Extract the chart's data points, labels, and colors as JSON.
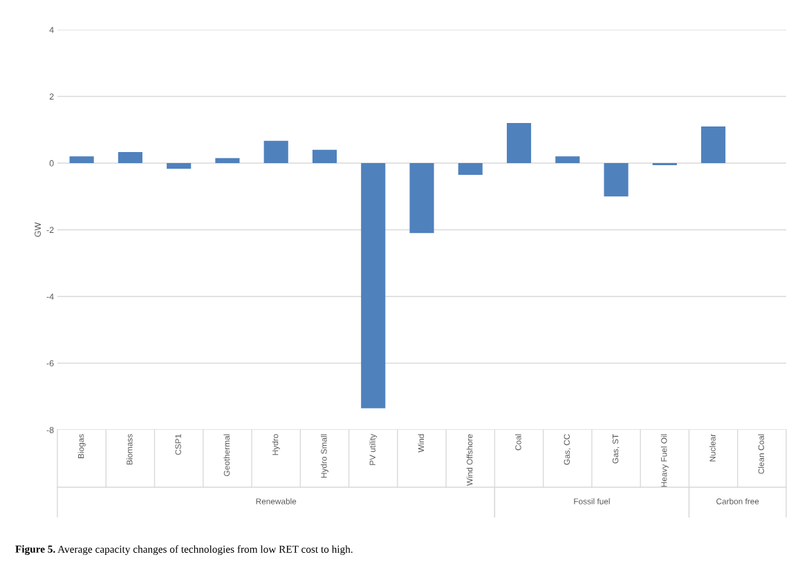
{
  "chart_data": {
    "type": "bar",
    "ylabel": "GW",
    "categories": [
      "Biogas",
      "Biomass",
      "CSP1",
      "Geothermal",
      "Hydro",
      "Hydro Small",
      "PV utility",
      "Wind",
      "Wind Offshore",
      "Coal",
      "Gas, CC",
      "Gas, ST",
      "Heavy Fuel Oil",
      "Nuclear",
      "Clean Coal"
    ],
    "values": [
      0.2,
      0.33,
      -0.17,
      0.15,
      0.67,
      0.4,
      -7.35,
      -2.1,
      -0.35,
      1.2,
      0.2,
      -1.0,
      -0.06,
      1.1,
      0
    ],
    "color": "#4f81bd",
    "ylim": [
      -8,
      4
    ],
    "yticks": [
      -8,
      -6,
      -4,
      -2,
      0,
      2,
      4
    ],
    "grid": "y",
    "annotations": [
      "Renewable",
      "Fossil fuel",
      "Carbon free",
      "Figure 5.",
      "Average capacity changes of technologies from low RET cost to high."
    ]
  }
}
